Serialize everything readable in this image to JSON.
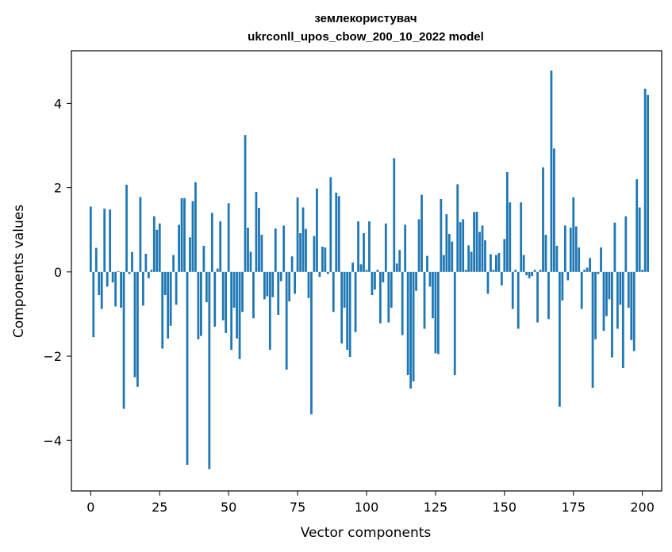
{
  "chart_data": {
    "type": "bar",
    "title_line1": "землекористувач",
    "title_line2": "ukrconll_upos_cbow_200_10_2022 model",
    "xlabel": "Vector components",
    "ylabel": "Components values",
    "xlim": [
      -7,
      207
    ],
    "ylim": [
      -5.2,
      5.25
    ],
    "xticks": [
      0,
      25,
      50,
      75,
      100,
      125,
      150,
      175,
      200
    ],
    "yticks": [
      4,
      2,
      0,
      -2,
      -4
    ],
    "ytick_labels": [
      "4",
      "2",
      "0",
      "−2",
      "−4"
    ],
    "bar_color": "#1f77b4",
    "values": [
      1.55,
      -1.55,
      0.57,
      -0.55,
      -0.88,
      1.5,
      -0.35,
      1.48,
      -0.25,
      -0.82,
      0.02,
      -0.85,
      -3.25,
      2.07,
      -0.05,
      0.47,
      -2.5,
      -2.73,
      1.78,
      -0.8,
      0.43,
      -0.15,
      0.05,
      1.32,
      1.0,
      1.15,
      -1.82,
      -0.55,
      -1.58,
      -1.28,
      0.4,
      -0.78,
      1.12,
      1.75,
      1.75,
      -4.58,
      0.82,
      1.68,
      2.13,
      -1.6,
      -1.52,
      0.62,
      -0.72,
      -4.68,
      1.4,
      -1.3,
      0.08,
      1.2,
      -1.15,
      -1.45,
      1.63,
      -1.85,
      -0.85,
      -1.58,
      -2.07,
      -0.95,
      3.25,
      1.05,
      0.48,
      -1.1,
      1.9,
      1.52,
      0.88,
      -0.65,
      -0.58,
      -1.85,
      -0.6,
      1.03,
      -1.02,
      -0.22,
      1.1,
      -2.32,
      -0.7,
      0.37,
      -0.52,
      1.77,
      0.92,
      1.53,
      1.02,
      -0.62,
      -3.38,
      0.85,
      1.98,
      -0.12,
      0.6,
      0.58,
      -0.05,
      2.25,
      -0.95,
      1.88,
      1.8,
      -1.7,
      -0.85,
      -1.85,
      -2.02,
      0.22,
      -1.43,
      1.2,
      0.18,
      0.92,
      0.05,
      1.2,
      -0.55,
      -0.42,
      0.05,
      -1.22,
      -0.25,
      1.15,
      -1.2,
      -0.85,
      2.7,
      0.2,
      0.52,
      -1.5,
      1.12,
      -2.45,
      -2.77,
      -2.6,
      -0.45,
      1.25,
      1.83,
      -1.35,
      0.38,
      -0.35,
      -1.1,
      -1.93,
      -1.95,
      1.73,
      0.4,
      1.37,
      0.9,
      0.72,
      -2.45,
      2.08,
      1.18,
      1.25,
      0.05,
      0.63,
      0.48,
      1.42,
      1.43,
      0.95,
      1.1,
      0.75,
      -0.52,
      0.42,
      0.05,
      0.4,
      0.45,
      -0.32,
      0.78,
      2.37,
      1.65,
      -0.88,
      0.05,
      -1.35,
      1.65,
      0.4,
      -0.08,
      -0.15,
      -0.1,
      0.05,
      -1.2,
      0.05,
      2.48,
      0.88,
      -1.12,
      4.78,
      2.93,
      0.62,
      -3.2,
      -0.68,
      1.1,
      -0.2,
      1.05,
      1.77,
      1.08,
      0.58,
      -0.88,
      0.05,
      0.1,
      0.33,
      -2.75,
      -1.6,
      -0.05,
      0.58,
      -1.4,
      -1.05,
      -0.65,
      -2.03,
      1.17,
      -1.35,
      -0.78,
      -2.28,
      1.32,
      -0.85,
      -1.62,
      -1.88,
      2.2,
      1.53,
      0.05,
      4.35,
      4.2
    ]
  }
}
